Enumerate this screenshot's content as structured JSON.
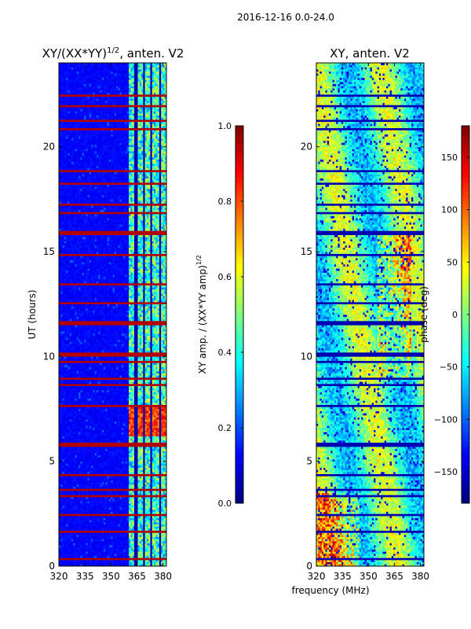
{
  "figure": {
    "suptitle": "2016-12-16 0.0-24.0",
    "xlabel": "frequency (MHz)"
  },
  "colors": {
    "jet": [
      "#00007f",
      "#0000ff",
      "#007fff",
      "#00ffff",
      "#7fff7f",
      "#ffff00",
      "#ff7f00",
      "#ff0000",
      "#7f0000"
    ]
  },
  "chart_data": [
    {
      "id": "amp",
      "type": "heatmap",
      "title_main": "XY/(XX*YY)",
      "title_sup": "1/2",
      "title_suffix": ", anten. V2",
      "xlabel": "",
      "ylabel": "UT (hours)",
      "xlim": [
        320,
        382
      ],
      "ylim": [
        0,
        24
      ],
      "xticks": [
        320,
        335,
        350,
        365,
        380
      ],
      "yticks": [
        0,
        5,
        10,
        15,
        20
      ],
      "x_bins": 60,
      "y_bins": 240,
      "band_edges_mhz": [
        360,
        364.5,
        369,
        373.5,
        378
      ],
      "flagged_hours": [
        0.3,
        1.6,
        2.4,
        3.3,
        3.6,
        4.3,
        5.7,
        5.8,
        7.6,
        8.6,
        8.9,
        9.7,
        10.0,
        10.1,
        11.5,
        11.6,
        12.5,
        13.4,
        14.8,
        15.8,
        15.9,
        16.8,
        17.2,
        18.2,
        18.8,
        20.8,
        21.2,
        21.9,
        22.4
      ],
      "colorbar": {
        "label_main": "XY amp. / (XX*YY amp)",
        "label_sup": "1/2",
        "vmin": 0.0,
        "vmax": 1.0,
        "ticks": [
          "0.0",
          "0.2",
          "0.4",
          "0.6",
          "0.8",
          "1.0"
        ]
      }
    },
    {
      "id": "phase",
      "type": "heatmap",
      "title_main": "XY, anten. V2",
      "xlabel": "frequency (MHz)",
      "ylabel": "",
      "xlim": [
        320,
        382
      ],
      "ylim": [
        0,
        24
      ],
      "xticks": [
        320,
        335,
        350,
        365,
        380
      ],
      "yticks": [
        0,
        5,
        10,
        15,
        20
      ],
      "x_bins": 60,
      "y_bins": 240,
      "flagged_hours": [
        0.3,
        1.6,
        2.4,
        3.3,
        3.6,
        4.3,
        5.7,
        5.8,
        7.6,
        8.6,
        8.9,
        9.7,
        10.0,
        10.1,
        11.5,
        11.6,
        12.5,
        13.4,
        14.8,
        15.8,
        15.9,
        16.8,
        17.2,
        18.2,
        18.8,
        20.8,
        21.2,
        21.9,
        22.4
      ],
      "colorbar": {
        "label_main": "phase (deg)",
        "vmin": -180,
        "vmax": 180,
        "ticks": [
          "−150",
          "−100",
          "−50",
          "0",
          "50",
          "100",
          "150"
        ]
      }
    }
  ]
}
